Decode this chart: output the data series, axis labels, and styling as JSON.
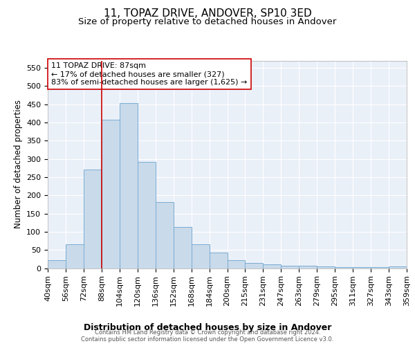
{
  "title1": "11, TOPAZ DRIVE, ANDOVER, SP10 3ED",
  "title2": "Size of property relative to detached houses in Andover",
  "xlabel": "Distribution of detached houses by size in Andover",
  "ylabel": "Number of detached properties",
  "bar_values": [
    22,
    65,
    270,
    408,
    453,
    291,
    181,
    113,
    65,
    42,
    22,
    15,
    10,
    7,
    6,
    5,
    3,
    3,
    3,
    5
  ],
  "bar_labels": [
    "40sqm",
    "56sqm",
    "72sqm",
    "88sqm",
    "104sqm",
    "120sqm",
    "136sqm",
    "152sqm",
    "168sqm",
    "184sqm",
    "200sqm",
    "215sqm",
    "231sqm",
    "247sqm",
    "263sqm",
    "279sqm",
    "295sqm",
    "311sqm",
    "327sqm",
    "343sqm",
    "359sqm"
  ],
  "ylim": [
    0,
    570
  ],
  "yticks": [
    0,
    50,
    100,
    150,
    200,
    250,
    300,
    350,
    400,
    450,
    500,
    550
  ],
  "bar_color": "#c9daea",
  "bar_edge_color": "#7aadd4",
  "vline_color": "#cc0000",
  "annotation_text": "11 TOPAZ DRIVE: 87sqm\n← 17% of detached houses are smaller (327)\n83% of semi-detached houses are larger (1,625) →",
  "annotation_box_color": "white",
  "annotation_box_edge": "#cc0000",
  "background_color": "#eaf0f8",
  "grid_color": "white",
  "footer_text": "Contains HM Land Registry data © Crown copyright and database right 2024.\nContains public sector information licensed under the Open Government Licence v3.0.",
  "title_fontsize": 11,
  "subtitle_fontsize": 9.5,
  "xlabel_fontsize": 9,
  "ylabel_fontsize": 8.5,
  "tick_fontsize": 8,
  "ann_fontsize": 8
}
